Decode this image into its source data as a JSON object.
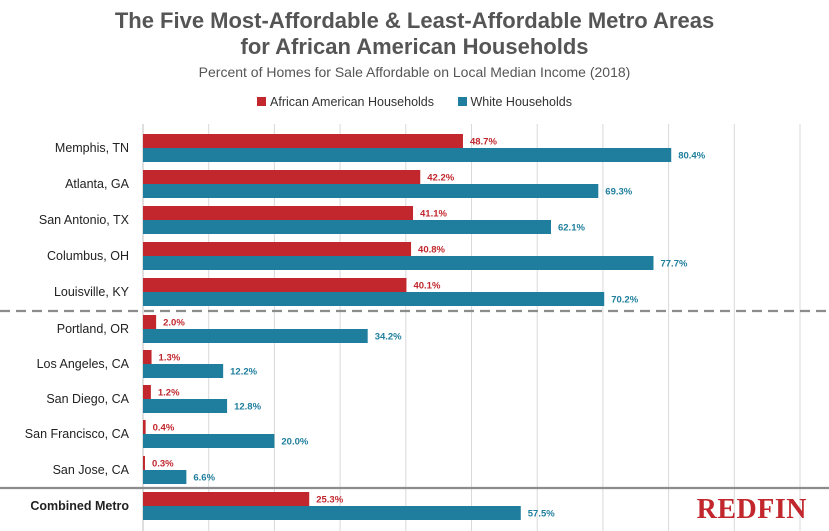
{
  "title_lines": [
    "The Five Most-Affordable & Least-Affordable Metro Areas",
    "for African American Households"
  ],
  "subtitle": "Percent of Homes for Sale Affordable on Local Median Income (2018)",
  "legend": [
    {
      "label": "African American Households",
      "color": "#c1272d"
    },
    {
      "label": "White Households",
      "color": "#1f7e9d"
    }
  ],
  "brand": {
    "name": "REDFIN",
    "color": "#c1272d"
  },
  "chart_data": {
    "type": "bar",
    "orientation": "horizontal",
    "title": "The Five Most-Affordable & Least-Affordable Metro Areas for African American Households",
    "subtitle": "Percent of Homes for Sale Affordable on Local Median Income (2018)",
    "categories": [
      "Memphis, TN",
      "Atlanta, GA",
      "San Antonio, TX",
      "Columbus, OH",
      "Louisville, KY",
      "Portland, OR",
      "Los Angeles, CA",
      "San Diego, CA",
      "San Francisco, CA",
      "San Jose, CA",
      "Combined Metro"
    ],
    "series": [
      {
        "name": "African American Households",
        "color": "#c1272d",
        "values": [
          48.7,
          42.2,
          41.1,
          40.8,
          40.1,
          2.0,
          1.3,
          1.2,
          0.4,
          0.3,
          25.3
        ],
        "labels": [
          "48.7%",
          "42.2%",
          "41.1%",
          "40.8%",
          "40.1%",
          "2.0%",
          "1.3%",
          "1.2%",
          "0.4%",
          "0.3%",
          "25.3%"
        ]
      },
      {
        "name": "White Households",
        "color": "#1f7e9d",
        "values": [
          80.4,
          69.3,
          62.1,
          77.7,
          70.2,
          34.2,
          12.2,
          12.8,
          20.0,
          6.6,
          57.5
        ],
        "labels": [
          "80.4%",
          "69.3%",
          "62.1%",
          "77.7%",
          "70.2%",
          "34.2%",
          "12.2%",
          "12.8%",
          "20.0%",
          "6.6%",
          "57.5%"
        ]
      }
    ],
    "xlim": [
      0,
      100
    ],
    "grid": true,
    "legend": "top-center",
    "separators": [
      "dashed line between most-affordable and least-affordable groups",
      "solid line above combined metro"
    ]
  }
}
